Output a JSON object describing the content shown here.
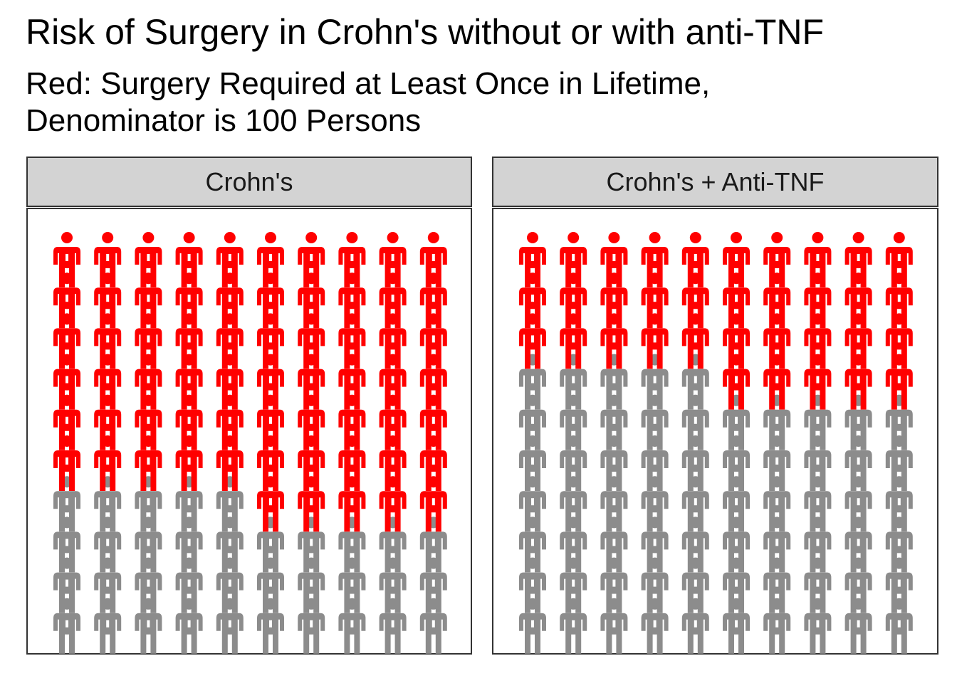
{
  "chart_data": {
    "type": "pictogram",
    "title": "Risk of Surgery in Crohn's without or with anti-TNF",
    "subtitle_line1": "Red: Surgery Required at Least Once in Lifetime,",
    "subtitle_line2": "Denominator is 100 Persons",
    "grid": {
      "columns": 10,
      "rows": 10,
      "total": 100
    },
    "colors": {
      "surgery": "#ff0000",
      "no_surgery": "#8c8c8c"
    },
    "icon": "person-icon",
    "panels": [
      {
        "label": "Crohn's",
        "surgery_count": 65
      },
      {
        "label": "Crohn's + Anti-TNF",
        "surgery_count": 35
      }
    ]
  }
}
